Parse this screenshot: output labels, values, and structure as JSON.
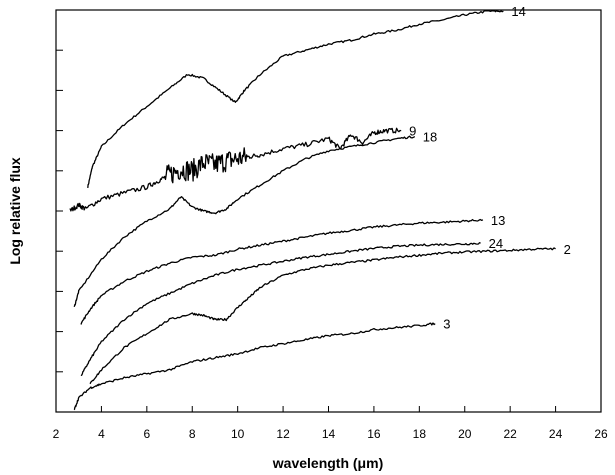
{
  "chart_data": {
    "type": "line",
    "xlabel": "wavelength (μm)",
    "ylabel": "Log relative flux",
    "xlim": [
      2,
      26
    ],
    "ylim": [
      0,
      10
    ],
    "x_ticks": [
      2,
      4,
      6,
      8,
      10,
      12,
      14,
      16,
      18,
      20,
      22,
      24,
      26
    ],
    "y_ticks_labeled": false,
    "grid": false,
    "series": [
      {
        "name": "14",
        "x": [
          3.4,
          3.6,
          4,
          5,
          6,
          7,
          7.8,
          8.5,
          9.2,
          9.9,
          10.3,
          11,
          12,
          13,
          14,
          15,
          16,
          17,
          18,
          19,
          20,
          21,
          21.7
        ],
        "y": [
          5.6,
          6.1,
          6.6,
          7.15,
          7.6,
          8.05,
          8.4,
          8.3,
          8.0,
          7.7,
          8.0,
          8.4,
          8.85,
          9.0,
          9.15,
          9.25,
          9.4,
          9.5,
          9.65,
          9.75,
          9.88,
          9.97,
          9.97
        ],
        "label": "14",
        "noisy": false
      },
      {
        "name": "9",
        "x": [
          2.6,
          3,
          3.3,
          4,
          5,
          6,
          6.5,
          7,
          7.5,
          8,
          8.5,
          9,
          9.5,
          10,
          10.5,
          11,
          12,
          13,
          14,
          14.5,
          15,
          15.5,
          16,
          16.5,
          17.2
        ],
        "y": [
          5.0,
          5.15,
          5.05,
          5.3,
          5.45,
          5.6,
          5.75,
          5.9,
          6.05,
          6.0,
          6.2,
          6.15,
          6.25,
          6.3,
          6.35,
          6.4,
          6.55,
          6.65,
          6.8,
          6.55,
          6.9,
          6.7,
          6.95,
          7.0,
          7.0
        ],
        "label": "9",
        "noisy": true
      },
      {
        "name": "18",
        "x": [
          2.8,
          3,
          4,
          5,
          6,
          7,
          7.5,
          8,
          8.5,
          9,
          9.5,
          10,
          11,
          12,
          13,
          14,
          15,
          16,
          17,
          17.8
        ],
        "y": [
          2.6,
          3.0,
          3.8,
          4.35,
          4.75,
          5.05,
          5.35,
          5.1,
          5.0,
          4.95,
          5.05,
          5.3,
          5.65,
          6.0,
          6.3,
          6.5,
          6.6,
          6.7,
          6.8,
          6.85
        ],
        "label": "18",
        "noisy": false
      },
      {
        "name": "13",
        "x": [
          3.1,
          3.5,
          4,
          5,
          6,
          7,
          8,
          9,
          10,
          11,
          12,
          13,
          14,
          15,
          16,
          17,
          18,
          19,
          20,
          20.8
        ],
        "y": [
          2.2,
          2.55,
          2.9,
          3.25,
          3.5,
          3.7,
          3.85,
          3.9,
          4.05,
          4.15,
          4.25,
          4.35,
          4.45,
          4.52,
          4.6,
          4.65,
          4.7,
          4.72,
          4.75,
          4.78
        ],
        "label": "13",
        "noisy": false
      },
      {
        "name": "24",
        "x": [
          3.1,
          3.5,
          4,
          5,
          6,
          7,
          8,
          9,
          10,
          11,
          12,
          13,
          14,
          15,
          16,
          17,
          18,
          19,
          20,
          20.7
        ],
        "y": [
          0.9,
          1.3,
          1.75,
          2.3,
          2.7,
          2.95,
          3.2,
          3.4,
          3.55,
          3.65,
          3.75,
          3.85,
          3.92,
          4.0,
          4.07,
          4.12,
          4.15,
          4.17,
          4.18,
          4.2
        ],
        "label": "24",
        "noisy": false
      },
      {
        "name": "2",
        "x": [
          3.5,
          4,
          5,
          6,
          7,
          8,
          8.5,
          9,
          9.5,
          10,
          10.5,
          11,
          12,
          13,
          14,
          15,
          16,
          17,
          18,
          19,
          20,
          21,
          22,
          23,
          24
        ],
        "y": [
          0.7,
          1.05,
          1.6,
          1.95,
          2.3,
          2.45,
          2.4,
          2.3,
          2.3,
          2.6,
          2.85,
          3.1,
          3.4,
          3.55,
          3.65,
          3.72,
          3.78,
          3.85,
          3.9,
          3.95,
          3.98,
          4.0,
          4.02,
          4.05,
          4.06
        ],
        "label": "2",
        "noisy": false
      },
      {
        "name": "3",
        "x": [
          2.8,
          3,
          3.5,
          4,
          5,
          6,
          7,
          8,
          9,
          10,
          11,
          12,
          13,
          14,
          15,
          16,
          17,
          18,
          18.7
        ],
        "y": [
          0.05,
          0.35,
          0.6,
          0.7,
          0.85,
          0.95,
          1.05,
          1.25,
          1.35,
          1.45,
          1.6,
          1.7,
          1.8,
          1.9,
          1.95,
          2.05,
          2.1,
          2.15,
          2.2
        ],
        "label": "3",
        "noisy": false
      }
    ]
  }
}
